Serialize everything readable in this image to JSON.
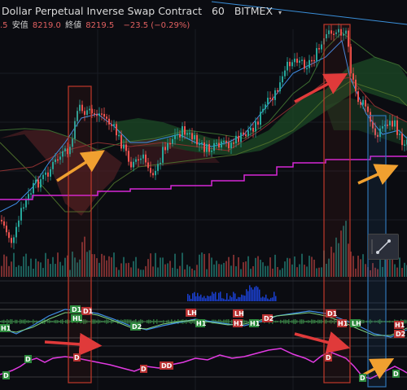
{
  "header": {
    "title": "Dollar Perpetual Inverse Swap Contract",
    "interval": "60",
    "exchange": "BITMEX",
    "collapse_icon": "chevron-down-icon",
    "prefix_value": ".5",
    "low_label": "安值",
    "low_value": "8219.0",
    "close_label": "終値",
    "close_value": "8219.5",
    "change_value": "−23.5 (−0.29%)"
  },
  "markers": {
    "d1": "D1",
    "h1": "H1",
    "hl": "HL",
    "d2": "D2",
    "lh": "LH",
    "d": "D",
    "dd": "DD"
  },
  "colors": {
    "background": "#0b0c11",
    "bull_candle": "#26a69a",
    "bear_candle": "#ef5350",
    "cloud_green": "#1f4d2a",
    "cloud_red": "#4d1f24",
    "magenta_line": "#d626d6",
    "blue_line": "#3f8ee8",
    "arrow_orange": "#f0a030",
    "arrow_red": "#e03a3a",
    "box_red": "#c0392b",
    "box_blue": "#2e75b6"
  },
  "tools": {
    "trendline_icon": "trendline-icon"
  }
}
